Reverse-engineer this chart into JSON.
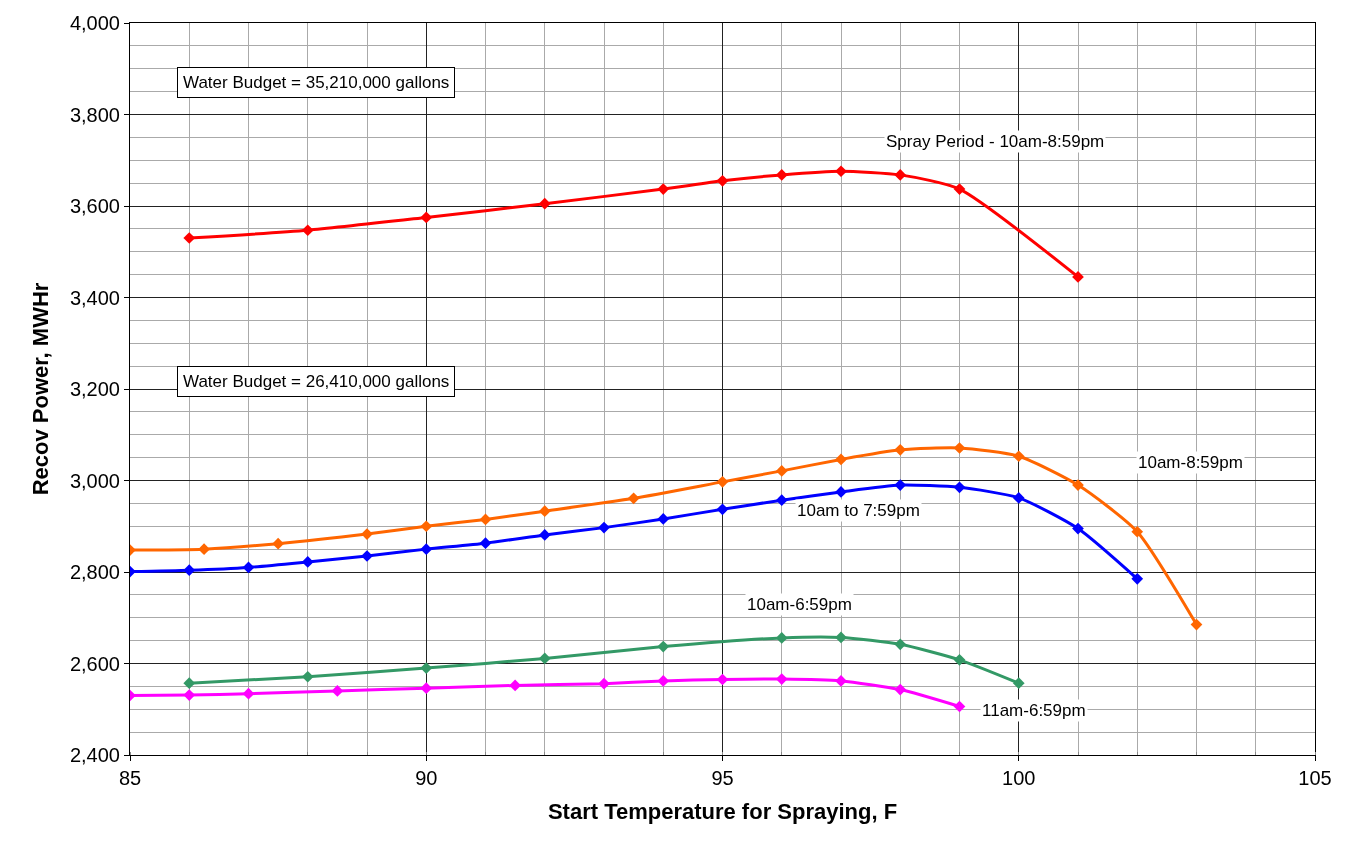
{
  "chart_data": {
    "type": "line",
    "xlabel": "Start Temperature for Spraying, F",
    "ylabel": "Recov Power, MWHr",
    "xlim": [
      85,
      105
    ],
    "xticks": [
      85,
      90,
      95,
      100,
      105
    ],
    "ylim": [
      2400,
      4000
    ],
    "yticks": [
      {
        "value": 2400,
        "label": "2,400"
      },
      {
        "value": 2600,
        "label": "2,600"
      },
      {
        "value": 2800,
        "label": "2,800"
      },
      {
        "value": 3000,
        "label": "3,000"
      },
      {
        "value": 3200,
        "label": "3,200"
      },
      {
        "value": 3400,
        "label": "3,400"
      },
      {
        "value": 3600,
        "label": "3,600"
      },
      {
        "value": 3800,
        "label": "3,800"
      },
      {
        "value": 4000,
        "label": "4,000"
      }
    ],
    "grid": true,
    "legend": false,
    "marker": "diamond",
    "line_style": "solid",
    "annotations": [
      "Water Budget = 35,210,000 gallons",
      "Water Budget = 26,410,000 gallons"
    ],
    "series": [
      {
        "name": "Spray Period - 10am-8:59pm",
        "color": "#ff0000",
        "x": [
          86,
          88,
          90,
          92,
          94,
          95,
          96,
          97,
          98,
          99,
          101
        ],
        "values": [
          3530,
          3547,
          3575,
          3605,
          3637,
          3655,
          3668,
          3676,
          3668,
          3637,
          3445
        ]
      },
      {
        "name": "10am-8:59pm",
        "color": "#ff6600",
        "x": [
          85,
          86.25,
          87.5,
          89,
          90,
          91,
          92,
          93.5,
          95,
          96,
          97,
          98,
          99,
          100,
          101,
          102,
          103
        ],
        "values": [
          2848,
          2850,
          2862,
          2883,
          2900,
          2915,
          2933,
          2961,
          2997,
          3021,
          3046,
          3067,
          3071,
          3053,
          2990,
          2888,
          2685
        ]
      },
      {
        "name": "10am to 7:59pm",
        "color": "#0000ff",
        "x": [
          85,
          86,
          87,
          88,
          89,
          90,
          91,
          92,
          93,
          94,
          95,
          96,
          97,
          98,
          99,
          100,
          101,
          102
        ],
        "values": [
          2801,
          2804,
          2810,
          2822,
          2835,
          2850,
          2863,
          2881,
          2897,
          2916,
          2937,
          2957,
          2975,
          2990,
          2985,
          2962,
          2895,
          2785
        ]
      },
      {
        "name": "10am-6:59pm",
        "color": "#339966",
        "x": [
          86,
          88,
          90,
          92,
          94,
          96,
          97,
          98,
          99,
          100
        ],
        "values": [
          2557,
          2571,
          2590,
          2611,
          2637,
          2656,
          2657,
          2642,
          2608,
          2557
        ]
      },
      {
        "name": "11am-6:59pm",
        "color": "#ff00ff",
        "x": [
          85,
          86,
          87,
          88.5,
          90,
          91.5,
          93,
          94,
          95,
          96,
          97,
          98,
          99
        ],
        "values": [
          2530,
          2531,
          2534,
          2540,
          2546,
          2552,
          2556,
          2562,
          2565,
          2566,
          2562,
          2543,
          2506
        ]
      }
    ]
  }
}
